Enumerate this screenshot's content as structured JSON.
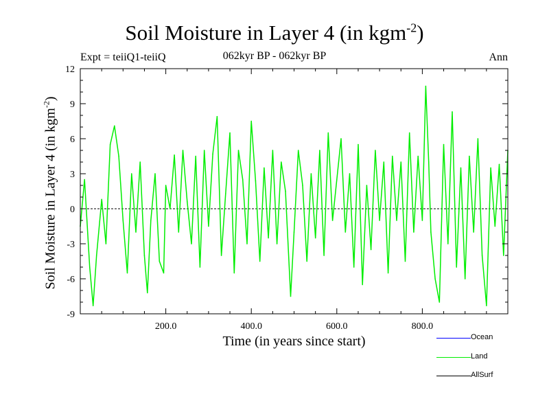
{
  "header": {
    "title_main": "Soil Moisture in Layer 4 (in kgm",
    "title_sup": "-2",
    "title_end": ")",
    "subtitle": "062kyr BP - 062kyr BP",
    "expt": "Expt = teiiQ1-teiiQ",
    "season": "Ann"
  },
  "colors": {
    "land": "#00ee00",
    "ocean": "#0000ff",
    "allsurf": "#000000"
  },
  "chart_data": {
    "type": "line",
    "xlabel": "Time (in years since start)",
    "ylabel_main": "Soil Moisture in Layer 4 (in kgm",
    "ylabel_sup": "-2",
    "ylabel_end": ")",
    "xlim": [
      0,
      1000
    ],
    "ylim": [
      -9,
      12
    ],
    "x_ticks": [
      200,
      400,
      600,
      800
    ],
    "x_tick_labels": [
      "200.0",
      "400.0",
      "600.0",
      "800.0"
    ],
    "y_ticks": [
      -9,
      -6,
      -3,
      0,
      3,
      6,
      9,
      12
    ],
    "y_tick_labels": [
      "-9",
      "-6",
      "-3",
      "0",
      "3",
      "6",
      "9",
      "12"
    ],
    "zero_line": true,
    "legend": {
      "position": "bottom-right",
      "entries": [
        "Ocean",
        "Land",
        "AllSurf"
      ]
    },
    "series": [
      {
        "name": "Land",
        "x": [
          0,
          10,
          22,
          30,
          38,
          50,
          60,
          70,
          80,
          90,
          100,
          110,
          120,
          130,
          140,
          150,
          157,
          165,
          175,
          185,
          195,
          200,
          210,
          220,
          230,
          240,
          250,
          260,
          270,
          280,
          290,
          300,
          310,
          320,
          330,
          340,
          350,
          360,
          370,
          380,
          390,
          400,
          410,
          420,
          430,
          440,
          450,
          460,
          470,
          480,
          492,
          500,
          510,
          520,
          530,
          540,
          550,
          560,
          570,
          580,
          590,
          600,
          610,
          620,
          630,
          640,
          650,
          660,
          670,
          680,
          690,
          700,
          710,
          720,
          730,
          740,
          750,
          760,
          770,
          780,
          790,
          800,
          808,
          815,
          820,
          830,
          840,
          850,
          860,
          870,
          880,
          890,
          900,
          910,
          920,
          930,
          940,
          950,
          960,
          970,
          980,
          990,
          1000
        ],
        "y": [
          -1.5,
          2.5,
          -5,
          -8.3,
          -4,
          0.8,
          -3,
          5.5,
          7.1,
          4.5,
          -1,
          -5.5,
          3,
          -2,
          4,
          -4,
          -7.2,
          -1,
          3,
          -4.5,
          -5.5,
          2,
          0,
          4.6,
          -2,
          5,
          0.6,
          -3,
          4.5,
          -5,
          5,
          -1.5,
          4.7,
          7.9,
          -4,
          1.3,
          6.5,
          -5.5,
          5,
          2.5,
          -3,
          7.5,
          2.4,
          -4.5,
          3.5,
          -2.5,
          5,
          -3,
          4,
          1.5,
          -7.5,
          -2,
          5,
          2,
          -4.5,
          3,
          -2.5,
          5,
          -4,
          6.5,
          -1,
          2.5,
          6,
          -2,
          3,
          -5,
          5.5,
          -6.5,
          2,
          -3.5,
          5,
          -1,
          4,
          -5.5,
          4.5,
          -1,
          4,
          -4.5,
          6.5,
          -2,
          4.5,
          -1,
          10.5,
          4,
          -2,
          -6,
          -8,
          5.5,
          -3,
          8.3,
          -5,
          3.5,
          -6,
          4.5,
          -2,
          6,
          -4,
          -8.3,
          3.5,
          -1.5,
          3.8,
          -4,
          5
        ]
      },
      {
        "name": "Ocean",
        "x": [],
        "y": []
      },
      {
        "name": "AllSurf",
        "x": [],
        "y": []
      }
    ]
  }
}
